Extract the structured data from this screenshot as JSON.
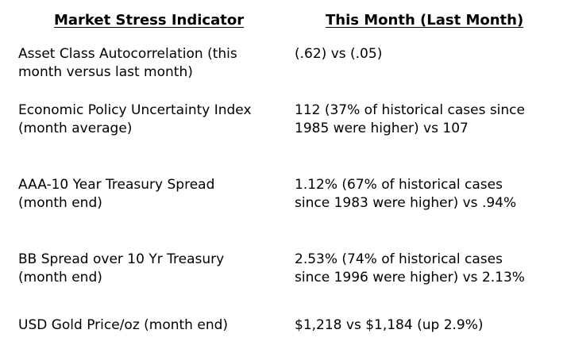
{
  "header": {
    "left": "Market Stress Indicator",
    "right": "This Month (Last Month)"
  },
  "rows": [
    {
      "indicator": [
        "Asset Class Autocorrelation (this",
        "month versus last month)"
      ],
      "value": [
        "(.62) vs (.05)"
      ]
    },
    {
      "indicator": [
        "Economic Policy Uncertainty Index",
        "(month average)"
      ],
      "value": [
        "112 (37% of historical cases since",
        "1985 were higher) vs 107"
      ]
    },
    {
      "indicator": [
        "AAA-10 Year Treasury Spread",
        "(month end)"
      ],
      "value": [
        "1.12% (67% of historical cases",
        "since 1983 were higher) vs .94%"
      ]
    },
    {
      "indicator": [
        "BB Spread over 10 Yr Treasury",
        "(month end)"
      ],
      "value": [
        "2.53% (74% of historical cases",
        "since 1996 were higher) vs 2.13%"
      ]
    },
    {
      "indicator": [
        "USD Gold Price/oz (month end)"
      ],
      "value": [
        "$1,218 vs $1,184 (up 2.9%)"
      ]
    }
  ]
}
